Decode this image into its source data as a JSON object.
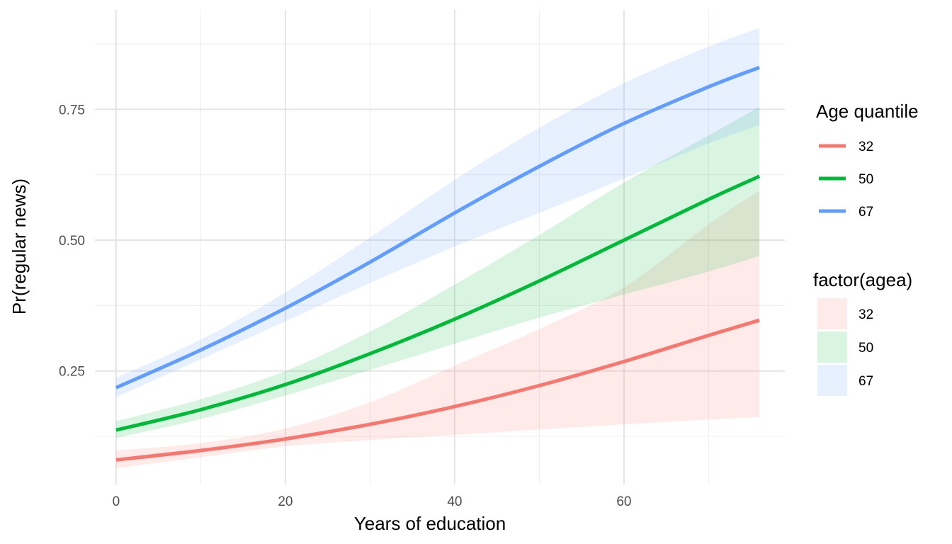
{
  "chart_data": {
    "type": "line",
    "title": "",
    "xlabel": "Years of education",
    "ylabel": "Pr(regular news)",
    "xlim": [
      -2.5,
      79
    ],
    "ylim": [
      0.033,
      0.94
    ],
    "x_ticks": [
      0,
      20,
      40,
      60
    ],
    "x_tick_labels": [
      "0",
      "20",
      "40",
      "60"
    ],
    "y_ticks": [
      0.25,
      0.5,
      0.75
    ],
    "y_tick_labels": [
      "0.25",
      "0.50",
      "0.75"
    ],
    "grid": true,
    "legend_position": "right",
    "x": [
      0,
      10,
      20,
      30,
      40,
      50,
      60,
      70,
      76
    ],
    "series": [
      {
        "name": "32",
        "color": "#F8766D",
        "values": [
          0.08,
          0.098,
          0.12,
          0.148,
          0.182,
          0.222,
          0.268,
          0.318,
          0.347
        ],
        "lower": [
          0.064,
          0.085,
          0.106,
          0.118,
          0.128,
          0.138,
          0.148,
          0.157,
          0.162
        ],
        "upper": [
          0.098,
          0.112,
          0.14,
          0.19,
          0.26,
          0.33,
          0.41,
          0.53,
          0.595
        ]
      },
      {
        "name": "50",
        "color": "#00BA38",
        "values": [
          0.137,
          0.176,
          0.224,
          0.283,
          0.349,
          0.422,
          0.5,
          0.578,
          0.622
        ],
        "lower": [
          0.122,
          0.158,
          0.203,
          0.252,
          0.302,
          0.352,
          0.396,
          0.44,
          0.47
        ],
        "upper": [
          0.154,
          0.196,
          0.25,
          0.325,
          0.415,
          0.51,
          0.61,
          0.7,
          0.755
        ]
      },
      {
        "name": "67",
        "color": "#619CFF",
        "values": [
          0.218,
          0.29,
          0.37,
          0.458,
          0.552,
          0.641,
          0.723,
          0.793,
          0.83
        ],
        "lower": [
          0.2,
          0.272,
          0.345,
          0.418,
          0.488,
          0.552,
          0.618,
          0.685,
          0.72
        ],
        "upper": [
          0.237,
          0.31,
          0.4,
          0.505,
          0.615,
          0.715,
          0.8,
          0.87,
          0.905
        ]
      }
    ],
    "line_legend_title": "Age quantile",
    "fill_legend_title": "factor(agea)",
    "line_legend": [
      {
        "label": "32",
        "color": "#F8766D"
      },
      {
        "label": "50",
        "color": "#00BA38"
      },
      {
        "label": "67",
        "color": "#619CFF"
      }
    ],
    "fill_legend": [
      {
        "label": "32",
        "color": "#F8766D"
      },
      {
        "label": "50",
        "color": "#00BA38"
      },
      {
        "label": "67",
        "color": "#619CFF"
      }
    ]
  }
}
